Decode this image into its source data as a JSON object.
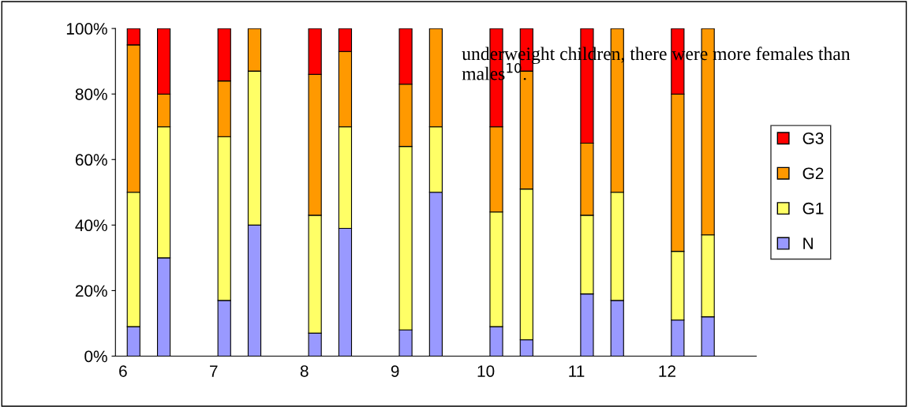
{
  "chart_data": {
    "type": "bar",
    "stacked": true,
    "categories": [
      "6",
      null,
      "7",
      null,
      "8",
      null,
      "9",
      null,
      "10",
      null,
      "11",
      null,
      "12",
      null
    ],
    "series": [
      {
        "name": "N",
        "color": "#9999ff",
        "values": [
          9,
          30,
          17,
          40,
          7,
          39,
          8,
          50,
          9,
          5,
          19,
          17,
          11,
          12
        ]
      },
      {
        "name": "G1",
        "color": "#ffff66",
        "values": [
          41,
          40,
          50,
          47,
          36,
          31,
          56,
          20,
          35,
          46,
          24,
          33,
          21,
          25
        ]
      },
      {
        "name": "G2",
        "color": "#ff9900",
        "values": [
          45,
          10,
          17,
          13,
          43,
          23,
          19,
          30,
          26,
          36,
          22,
          50,
          48,
          63
        ]
      },
      {
        "name": "G3",
        "color": "#ff0000",
        "values": [
          5,
          20,
          16,
          0,
          14,
          7,
          17,
          0,
          30,
          13,
          35,
          0,
          20,
          0
        ]
      }
    ],
    "ylim": [
      0,
      100
    ],
    "yticks": [
      {
        "value": 0,
        "label": "0%"
      },
      {
        "value": 20,
        "label": "20%"
      },
      {
        "value": 40,
        "label": "40%"
      },
      {
        "value": 60,
        "label": "60%"
      },
      {
        "value": 80,
        "label": "80%"
      },
      {
        "value": 100,
        "label": "100%"
      }
    ],
    "legend": "right",
    "grid": false,
    "annotations": [
      "underweight children, there were more females than males$^{10}$."
    ]
  }
}
